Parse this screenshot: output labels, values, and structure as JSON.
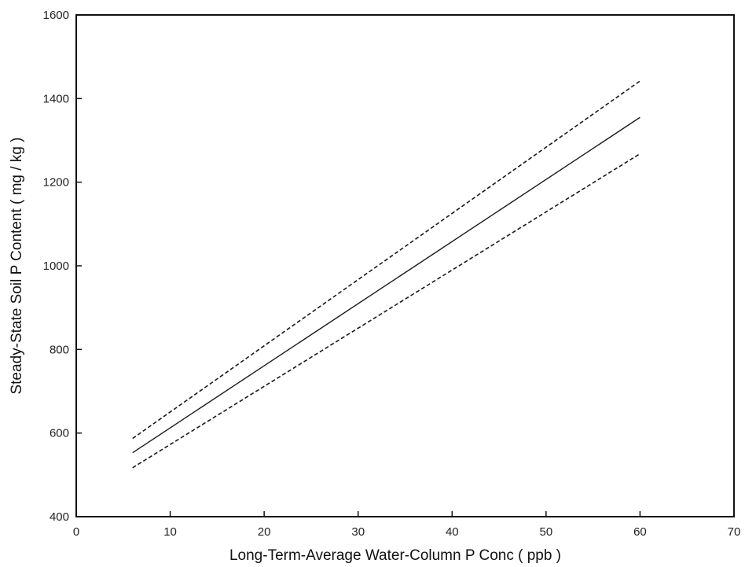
{
  "chart_data": {
    "type": "line",
    "title": "",
    "xlabel": "Long-Term-Average Water-Column P Conc  ( ppb )",
    "ylabel": "Steady-State Soil P Content ( mg / kg )",
    "xlim": [
      0,
      70
    ],
    "ylim": [
      400,
      1600
    ],
    "xticks": [
      0,
      10,
      20,
      30,
      40,
      50,
      60,
      70
    ],
    "yticks": [
      400,
      600,
      800,
      1000,
      1200,
      1400,
      1600
    ],
    "grid": false,
    "legend": "none",
    "series": [
      {
        "style": "solid",
        "x": [
          6,
          60
        ],
        "y": [
          553,
          1355
        ]
      },
      {
        "style": "dashed",
        "x": [
          6,
          60
        ],
        "y": [
          587,
          1442
        ]
      },
      {
        "style": "dashed",
        "x": [
          6,
          60
        ],
        "y": [
          517,
          1268
        ]
      }
    ]
  }
}
